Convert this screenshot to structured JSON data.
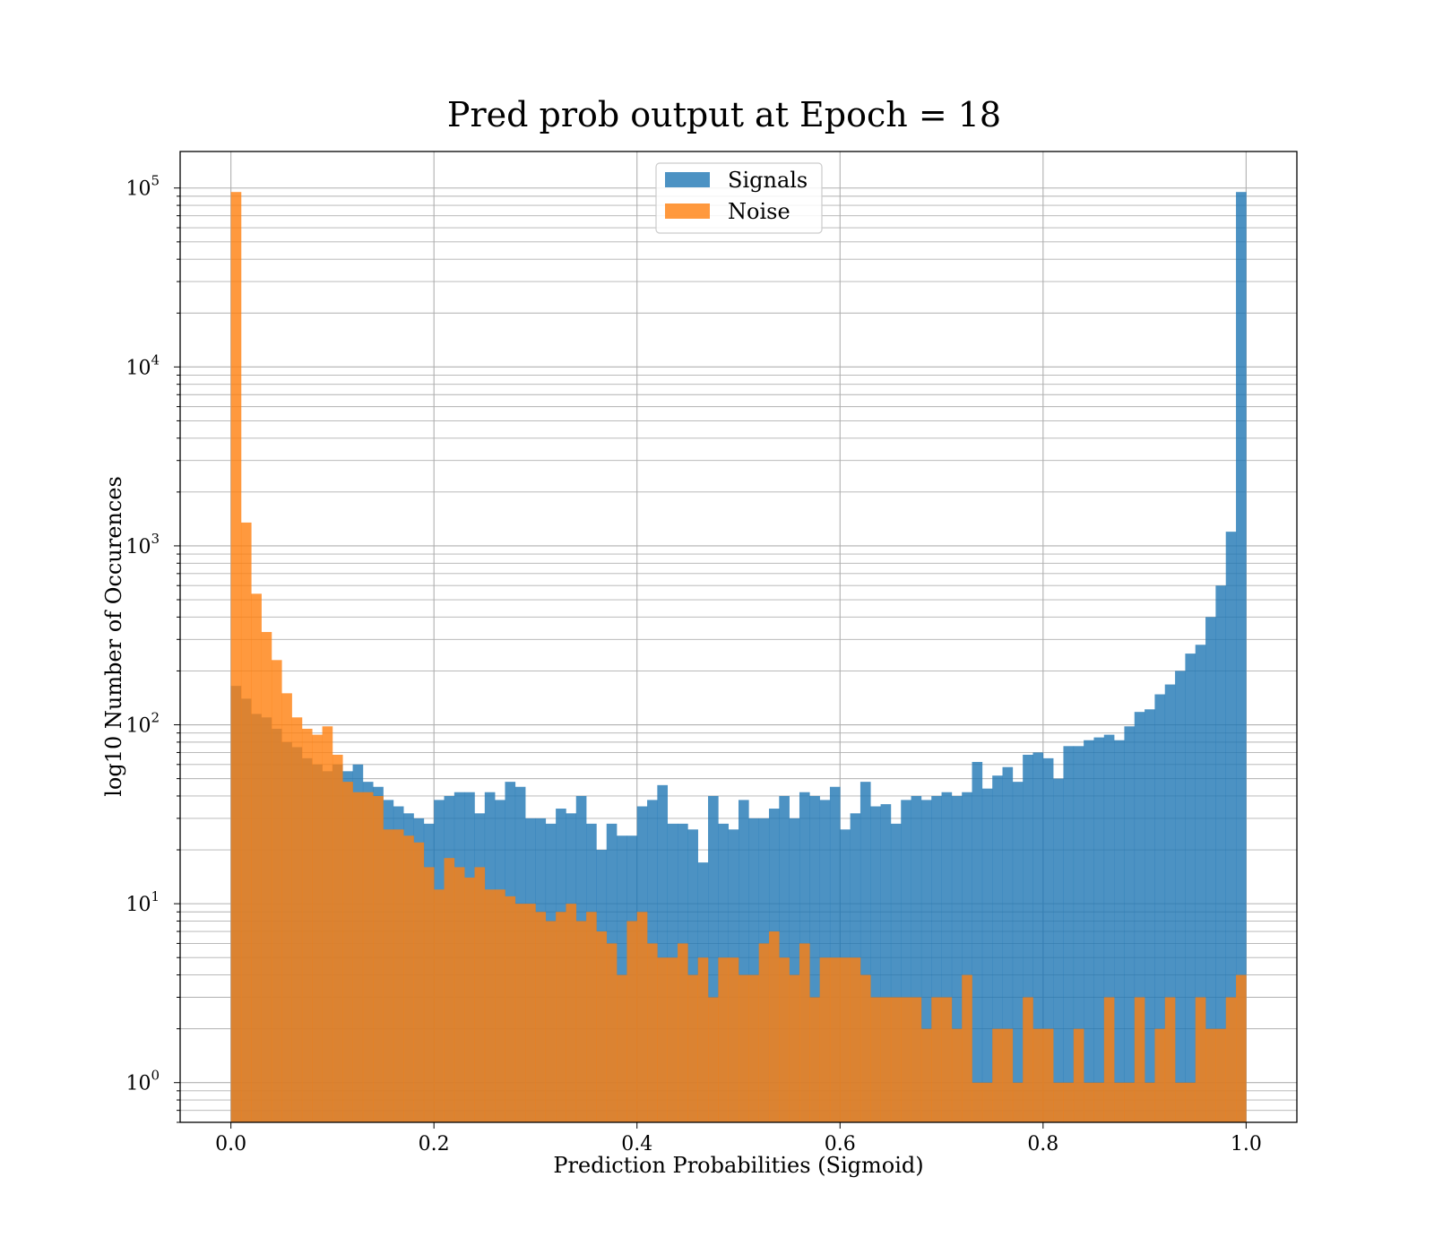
{
  "chart_data": {
    "type": "bar",
    "title": "Pred prob output at Epoch = 18",
    "xlabel": "Prediction Probabilities (Sigmoid)",
    "ylabel": "log10 Number of Occurences",
    "xlim": [
      -0.05,
      1.05
    ],
    "ylim": [
      0.6,
      160000
    ],
    "yscale": "log",
    "grid": true,
    "legend_position": "upper center",
    "x_ticks": [
      {
        "value": 0.0,
        "label": "0.0"
      },
      {
        "value": 0.2,
        "label": "0.2"
      },
      {
        "value": 0.4,
        "label": "0.4"
      },
      {
        "value": 0.6,
        "label": "0.6"
      },
      {
        "value": 0.8,
        "label": "0.8"
      },
      {
        "value": 1.0,
        "label": "1.0"
      }
    ],
    "y_ticks": [
      {
        "value": 1,
        "base": "10",
        "exp": "0"
      },
      {
        "value": 10,
        "base": "10",
        "exp": "1"
      },
      {
        "value": 100,
        "base": "10",
        "exp": "2"
      },
      {
        "value": 1000,
        "base": "10",
        "exp": "3"
      },
      {
        "value": 10000,
        "base": "10",
        "exp": "4"
      },
      {
        "value": 100000,
        "base": "10",
        "exp": "5"
      }
    ],
    "bins": {
      "start": 0.0,
      "end": 1.0,
      "count": 100
    },
    "series": [
      {
        "name": "Signals",
        "color": "#1f77b4",
        "opacity": 0.8,
        "values": [
          165,
          140,
          115,
          110,
          95,
          80,
          75,
          65,
          60,
          55,
          60,
          55,
          60,
          48,
          45,
          38,
          35,
          32,
          30,
          28,
          38,
          40,
          42,
          42,
          32,
          42,
          38,
          48,
          45,
          30,
          30,
          28,
          34,
          32,
          40,
          28,
          20,
          28,
          24,
          24,
          35,
          38,
          46,
          28,
          28,
          26,
          17,
          40,
          28,
          26,
          38,
          30,
          30,
          34,
          40,
          30,
          42,
          40,
          38,
          45,
          26,
          32,
          48,
          35,
          36,
          28,
          38,
          40,
          38,
          40,
          42,
          40,
          42,
          62,
          44,
          52,
          58,
          48,
          68,
          70,
          65,
          50,
          76,
          76,
          82,
          85,
          88,
          82,
          98,
          118,
          122,
          148,
          168,
          200,
          250,
          280,
          400,
          600,
          1200,
          95000
        ]
      },
      {
        "name": "Noise",
        "color": "#ff7f0e",
        "opacity": 0.8,
        "values": [
          95000,
          1350,
          540,
          330,
          230,
          150,
          110,
          95,
          88,
          98,
          68,
          48,
          42,
          42,
          40,
          26,
          26,
          24,
          22,
          16,
          12,
          18,
          16,
          14,
          16,
          12,
          12,
          11,
          10,
          10,
          9,
          8,
          9,
          10,
          8,
          9,
          7,
          6,
          4,
          8,
          9,
          6,
          5,
          5,
          6,
          4,
          5,
          3,
          5,
          5,
          4,
          4,
          6,
          7,
          5,
          4,
          6,
          3,
          5,
          5,
          5,
          5,
          4,
          3,
          3,
          3,
          3,
          3,
          2,
          3,
          3,
          2,
          4,
          1,
          1,
          2,
          2,
          1,
          3,
          2,
          2,
          1,
          1,
          2,
          1,
          1,
          3,
          1,
          1,
          3,
          1,
          2,
          3,
          1,
          1,
          3,
          2,
          2,
          3,
          4
        ]
      }
    ]
  }
}
